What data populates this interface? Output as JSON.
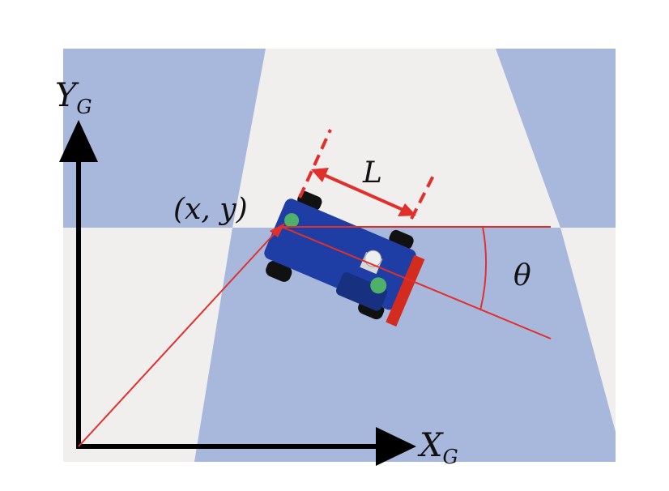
{
  "labels": {
    "y_axis_main": "Y",
    "y_axis_sub": "G",
    "x_axis_main": "X",
    "x_axis_sub": "G",
    "position": "(x, y)",
    "wheelbase": "L",
    "heading": "θ"
  },
  "colors": {
    "floor_blue": "#a8b7dc",
    "floor_white": "#f1eeee",
    "annotation_red": "#e0302c",
    "vehicle_body": "#1e3ea5",
    "axis_black": "#000000"
  }
}
